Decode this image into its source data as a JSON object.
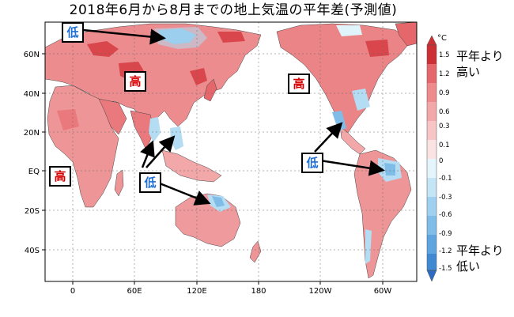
{
  "title": "2018年6月から8月までの地上気温の平年差(予測値)",
  "map": {
    "lat_labels": [
      "60N",
      "40N",
      "20N",
      "EQ",
      "20S",
      "40S"
    ],
    "lon_labels": [
      "0",
      "60E",
      "120E",
      "180",
      "120W",
      "60W"
    ]
  },
  "annotations": {
    "high_label": "高",
    "low_label": "低"
  },
  "legend": {
    "unit": "°C",
    "levels": [
      "1.5",
      "1.2",
      "0.9",
      "0.6",
      "0.3",
      "0.1",
      "0",
      "-0.1",
      "-0.3",
      "-0.6",
      "-0.9",
      "-1.2",
      "-1.5"
    ],
    "above_label_1": "平年より",
    "above_label_2": "高い",
    "below_label_1": "平年より",
    "below_label_2": "低い",
    "colors": {
      "very_high": "#cc3035",
      "high": "#e6676b",
      "mid_high": "#f2a7a8",
      "low_high": "#fbd6d6",
      "neutral_high": "#ffffff",
      "neutral_low": "#dff4fb",
      "low_low": "#b4dcf2",
      "mid_low": "#7fbce8",
      "low": "#4f96d8",
      "very_low": "#2b6cc2"
    }
  }
}
